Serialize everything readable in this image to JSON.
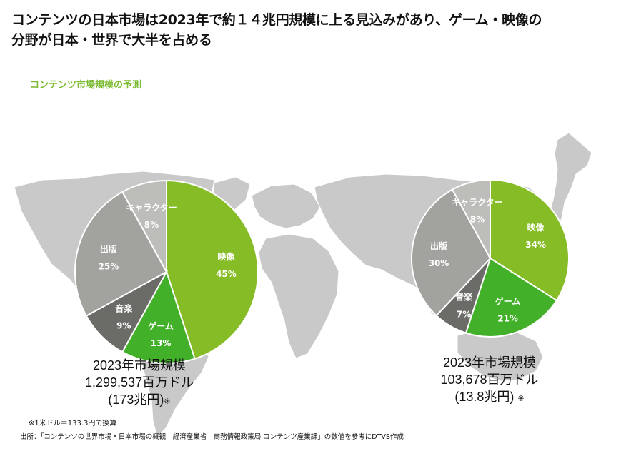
{
  "headline": {
    "line1": "コンテンツの日本市場は2023年で約１４兆円規模に上る見込みがあり、ゲーム・映像の",
    "line2": "分野が日本・世界で大半を占める"
  },
  "subheading": "コンテンツ市場規模の予測",
  "colors": {
    "映像": "#86bc25",
    "ゲーム": "#43b02a",
    "音楽": "#6b6b67",
    "出版": "#a2a29f",
    "キャラクター": "#bdbdba",
    "accent": "#7dbb35",
    "map": "#c9c9c9"
  },
  "chart_data": [
    {
      "type": "pie",
      "chart": "world",
      "slices": [
        {
          "label": "映像",
          "value": 45,
          "display": "45%"
        },
        {
          "label": "ゲーム",
          "value": 13,
          "display": "13%"
        },
        {
          "label": "音楽",
          "value": 9,
          "display": "9%"
        },
        {
          "label": "出版",
          "value": 25,
          "display": "25%"
        },
        {
          "label": "キャラクター",
          "value": 8,
          "display": "8%"
        }
      ],
      "summary": {
        "line1": "2023年市場規模",
        "line2": "1,299,537百万ドル",
        "line3": "(173兆円)",
        "mark": "※"
      }
    },
    {
      "type": "pie",
      "chart": "japan",
      "slices": [
        {
          "label": "映像",
          "value": 34,
          "display": "34%"
        },
        {
          "label": "ゲーム",
          "value": 21,
          "display": "21%"
        },
        {
          "label": "音楽",
          "value": 7,
          "display": "7%"
        },
        {
          "label": "出版",
          "value": 30,
          "display": "30%"
        },
        {
          "label": "キャラクター",
          "value": 8,
          "display": "8%"
        }
      ],
      "summary": {
        "line1": "2023年市場規模",
        "line2": "103,678百万ドル",
        "line3": "(13.8兆円)",
        "mark": "※"
      }
    }
  ],
  "footnotes": {
    "rate": "※1米ドル＝133.3円で換算",
    "source": "出所：「コンテンツの世界市場・日本市場の概観　経済産業省　商務情報政策局 コンテンツ産業課」の数値を参考にDTVS作成"
  }
}
